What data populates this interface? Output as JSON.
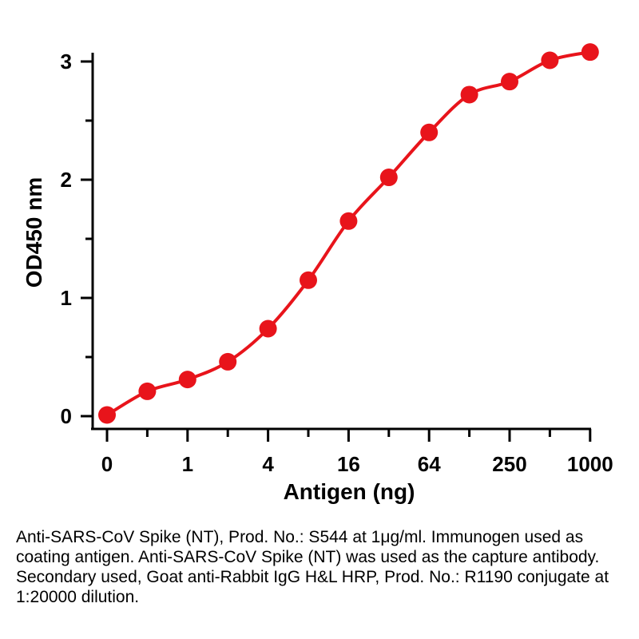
{
  "chart_data": {
    "type": "line",
    "xlabel": "Antigen (ng)",
    "ylabel": "OD450 nm",
    "x_tick_labels": [
      "0",
      "1",
      "4",
      "16",
      "64",
      "250",
      "1000"
    ],
    "y_tick_labels": [
      "0",
      "1",
      "2",
      "3"
    ],
    "ylim": [
      0,
      3
    ],
    "series": [
      {
        "color": "#e8141b",
        "x": [
          "0",
          "0.5",
          "1",
          "2",
          "4",
          "8",
          "16",
          "32",
          "64",
          "125",
          "250",
          "500",
          "1000"
        ],
        "values": [
          0.01,
          0.21,
          0.31,
          0.46,
          0.74,
          1.15,
          1.65,
          2.02,
          2.4,
          2.72,
          2.83,
          3.01,
          3.08
        ]
      }
    ]
  },
  "caption": "Anti-SARS-CoV Spike (NT), Prod. No.: S544 at 1μg/ml. Immunogen used as coating antigen. Anti-SARS-CoV Spike (NT) was used as the capture antibody. Secondary used, Goat anti-Rabbit IgG H&L HRP, Prod. No.: R1190 conjugate at 1:20000 dilution."
}
